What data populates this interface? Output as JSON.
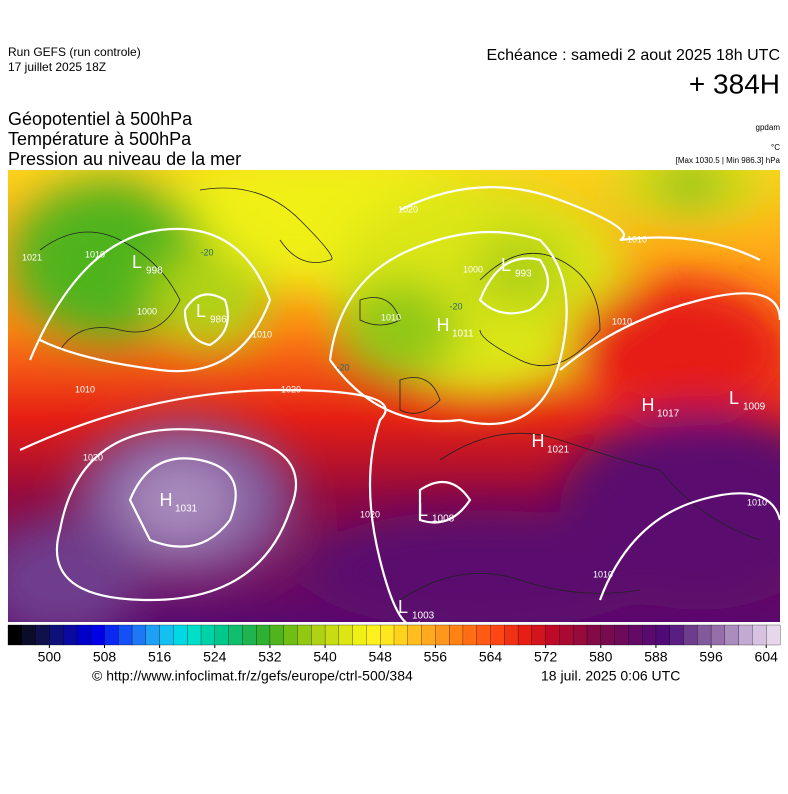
{
  "header": {
    "run": "Run GEFS (run controle)",
    "run_date": "17 juillet 2025 18Z",
    "valid": "Echéance : samedi 2 aout 2025 18h UTC",
    "lead": "+ 384H"
  },
  "titles": [
    "Géopotentiel à 500hPa",
    "Température à 500hPa",
    "Pression au niveau de la mer"
  ],
  "units": {
    "geopotential": "gpdam",
    "temperature": "°C",
    "pressure": "[Max 1030.5 | Min 986.3] hPa"
  },
  "centers": [
    {
      "letter": "L",
      "value": 998
    },
    {
      "letter": "L",
      "value": 986
    },
    {
      "letter": "L",
      "value": 993
    },
    {
      "letter": "H",
      "value": 1011
    },
    {
      "letter": "H",
      "value": 1031
    },
    {
      "letter": "L",
      "value": 1008
    },
    {
      "letter": "L",
      "value": 1003
    },
    {
      "letter": "H",
      "value": 1021
    },
    {
      "letter": "H",
      "value": 1017
    },
    {
      "letter": "L",
      "value": 1009
    }
  ],
  "isobar_labels": [
    1021,
    1010,
    1000,
    1010,
    1010,
    1020,
    1020,
    1020,
    1020,
    1010,
    1000,
    1010,
    1010,
    1010,
    1010
  ],
  "temperature_labels": [
    -20,
    -20,
    -20
  ],
  "scale": {
    "range": [
      494,
      606
    ],
    "ticks": [
      500,
      508,
      516,
      524,
      532,
      540,
      548,
      556,
      564,
      572,
      580,
      588,
      596,
      604
    ],
    "colors": [
      "#000000",
      "#0b0b2a",
      "#10104a",
      "#0f0f7a",
      "#0a0aa0",
      "#0000c8",
      "#0000e6",
      "#0a28f0",
      "#1450f5",
      "#1e78f5",
      "#1ea0f5",
      "#14c0f0",
      "#00d8e6",
      "#00e0c8",
      "#00d2a8",
      "#00c88c",
      "#10be6e",
      "#20b450",
      "#30b030",
      "#50b41e",
      "#70be14",
      "#90c814",
      "#b0d214",
      "#c8dc14",
      "#dce614",
      "#f0f014",
      "#fff01e",
      "#ffe61e",
      "#ffd21e",
      "#ffbe1e",
      "#ffaa1e",
      "#ff961e",
      "#ff8214",
      "#ff6e14",
      "#ff5a14",
      "#ff4614",
      "#f03214",
      "#e61e14",
      "#d2141e",
      "#be0a28",
      "#aa0a32",
      "#960a3c",
      "#820a46",
      "#780a50",
      "#6e0a5a",
      "#640a64",
      "#5a0a6e",
      "#500a78",
      "#5a1e82",
      "#6e3c8c",
      "#825a9b",
      "#966eaa",
      "#aa8cbe",
      "#c3aad2",
      "#d7c3e1",
      "#e6d7eb"
    ]
  },
  "footer": {
    "source": "© http://www.infoclimat.fr/z/gefs/europe/ctrl-500/384",
    "issued": "18 juil. 2025  0:06 UTC"
  }
}
